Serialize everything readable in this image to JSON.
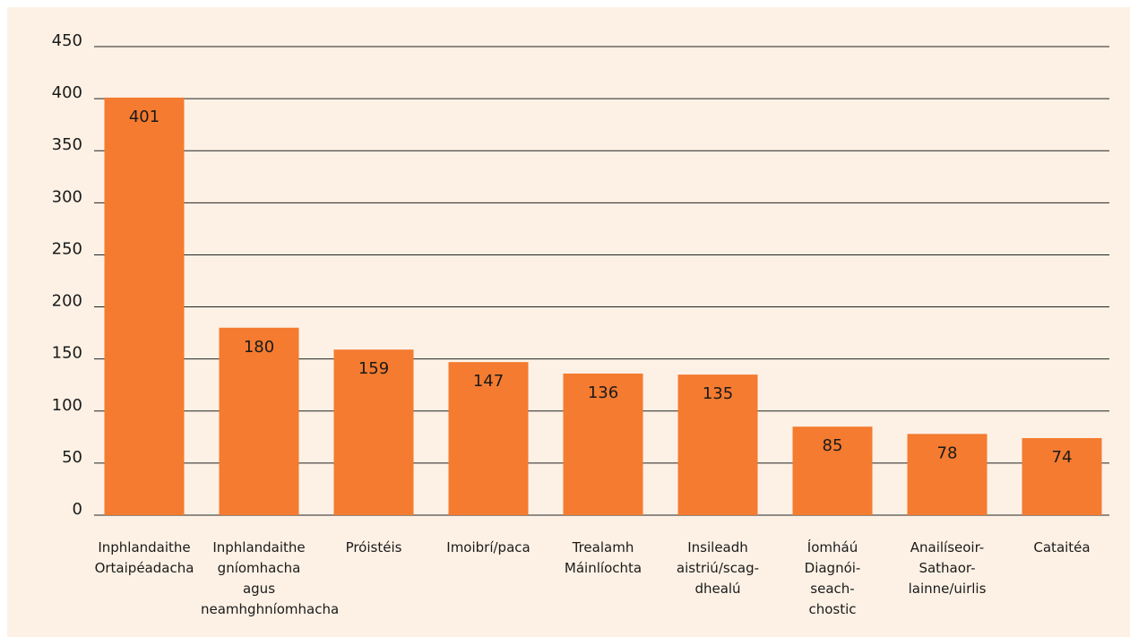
{
  "chart_data": {
    "type": "bar",
    "categories": [
      "Inphlandaithe\nOrtaipéadacha",
      "Inphlandaithe\ngníomhacha\nagus\nneamhghníomhacha",
      "Próistéis",
      "Imoibrí/paca",
      "Trealamh\nMáinlíochta",
      "Insileadh\naistriú/scag-\ndhealú",
      "Íomháú\nDiagnói-\nseach-\nchostic",
      "Anailíseoir-\nSathaor-\nlainne/uirlis",
      "Cataitéa"
    ],
    "values": [
      401,
      180,
      159,
      147,
      136,
      135,
      85,
      78,
      74
    ],
    "color": "#f47b30",
    "ylim": [
      0,
      450
    ],
    "yticks": [
      0,
      50,
      100,
      150,
      200,
      250,
      300,
      350,
      400,
      450
    ],
    "grid": true
  }
}
